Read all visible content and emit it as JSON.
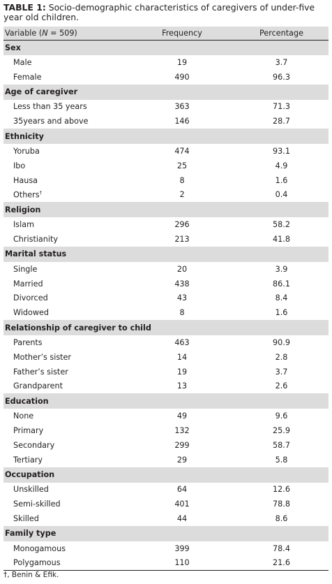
{
  "caption": {
    "label": "TABLE 1:",
    "text": " Socio-demographic characteristics of caregivers of under-five year old children."
  },
  "header": {
    "variable_prefix": "Variable (",
    "variable_n": "N",
    "variable_suffix": " = 509)",
    "frequency": "Frequency",
    "percentage": "Percentage"
  },
  "sections": [
    {
      "title": "Sex",
      "rows": [
        {
          "label": "Male",
          "frequency": "19",
          "percentage": "3.7"
        },
        {
          "label": "Female",
          "frequency": "490",
          "percentage": "96.3"
        }
      ]
    },
    {
      "title": "Age of caregiver",
      "rows": [
        {
          "label": "Less than 35 years",
          "frequency": "363",
          "percentage": "71.3"
        },
        {
          "label": "35years and above",
          "frequency": "146",
          "percentage": "28.7"
        }
      ]
    },
    {
      "title": "Ethnicity",
      "rows": [
        {
          "label": "Yoruba",
          "frequency": "474",
          "percentage": "93.1"
        },
        {
          "label": "Ibo",
          "frequency": "25",
          "percentage": "4.9"
        },
        {
          "label": "Hausa",
          "frequency": "8",
          "percentage": "1.6"
        },
        {
          "label": "Others",
          "sup": "†",
          "frequency": "2",
          "percentage": "0.4"
        }
      ]
    },
    {
      "title": "Religion",
      "rows": [
        {
          "label": "Islam",
          "frequency": "296",
          "percentage": "58.2"
        },
        {
          "label": "Christianity",
          "frequency": "213",
          "percentage": "41.8"
        }
      ]
    },
    {
      "title": "Marital status",
      "rows": [
        {
          "label": "Single",
          "frequency": "20",
          "percentage": "3.9"
        },
        {
          "label": "Married",
          "frequency": "438",
          "percentage": "86.1"
        },
        {
          "label": "Divorced",
          "frequency": "43",
          "percentage": "8.4"
        },
        {
          "label": "Widowed",
          "frequency": "8",
          "percentage": "1.6"
        }
      ]
    },
    {
      "title": "Relationship of caregiver to child",
      "rows": [
        {
          "label": "Parents",
          "frequency": "463",
          "percentage": "90.9"
        },
        {
          "label": "Mother’s sister",
          "frequency": "14",
          "percentage": "2.8"
        },
        {
          "label": "Father’s sister",
          "frequency": "19",
          "percentage": "3.7"
        },
        {
          "label": "Grandparent",
          "frequency": "13",
          "percentage": "2.6"
        }
      ]
    },
    {
      "title": "Education",
      "rows": [
        {
          "label": "None",
          "frequency": "49",
          "percentage": "9.6"
        },
        {
          "label": "Primary",
          "frequency": "132",
          "percentage": "25.9"
        },
        {
          "label": "Secondary",
          "frequency": "299",
          "percentage": "58.7"
        },
        {
          "label": "Tertiary",
          "frequency": "29",
          "percentage": "5.8"
        }
      ]
    },
    {
      "title": "Occupation",
      "rows": [
        {
          "label": "Unskilled",
          "frequency": "64",
          "percentage": "12.6"
        },
        {
          "label": "Semi-skilled",
          "frequency": "401",
          "percentage": "78.8"
        },
        {
          "label": "Skilled",
          "frequency": "44",
          "percentage": "8.6"
        }
      ]
    },
    {
      "title": "Family type",
      "rows": [
        {
          "label": "Monogamous",
          "frequency": "399",
          "percentage": "78.4"
        },
        {
          "label": "Polygamous",
          "frequency": "110",
          "percentage": "21.6"
        }
      ]
    }
  ],
  "footnote": "†, Benin & Efik."
}
